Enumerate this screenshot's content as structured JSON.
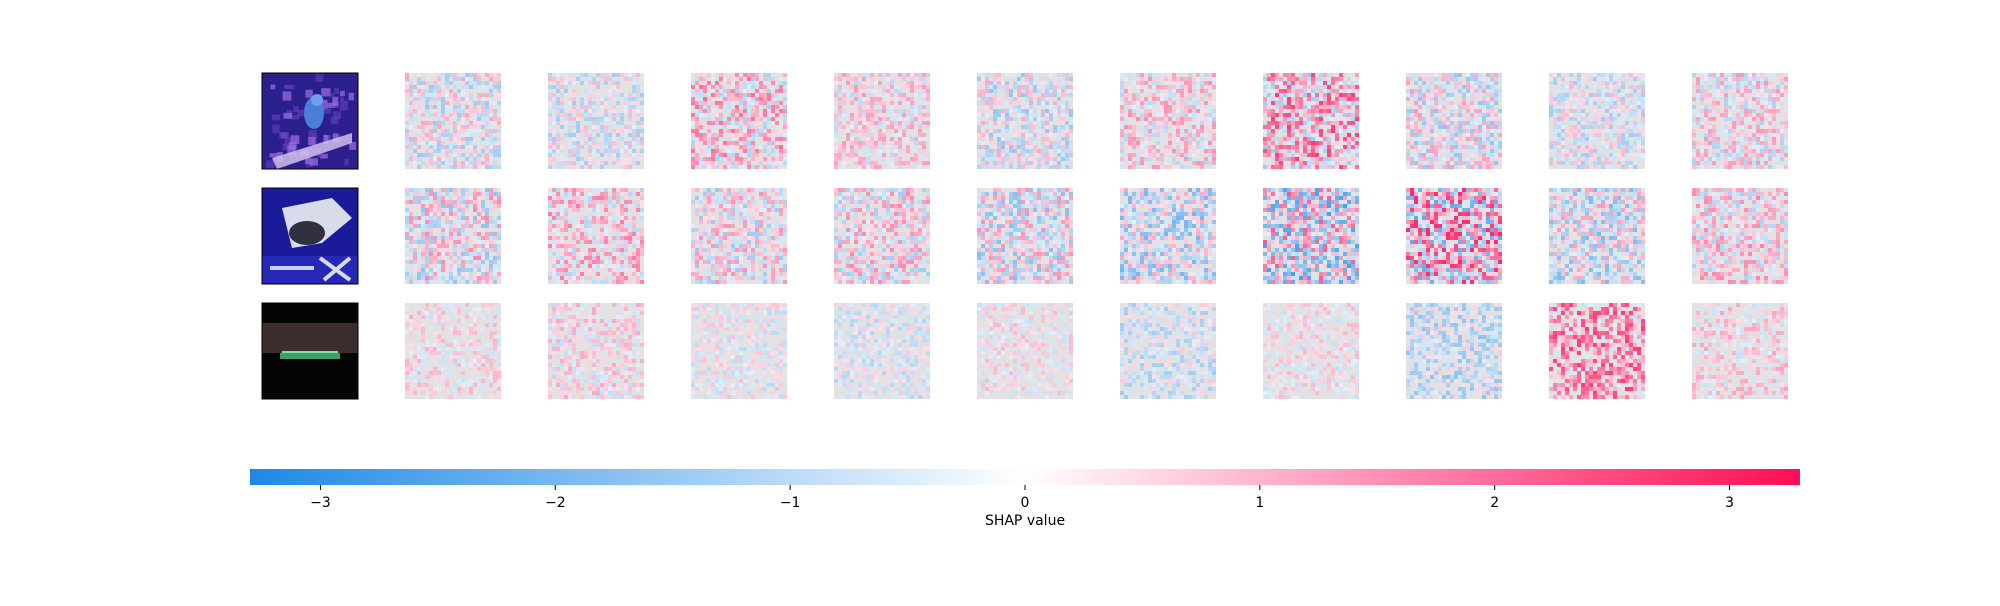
{
  "chart_data": {
    "type": "heatmap",
    "description_kind": "image-explanation-grid",
    "rows": 3,
    "columns_per_row": 11,
    "first_column": "original image",
    "input_images": [
      {
        "icon": "bird-image",
        "colors": {
          "background": "#2a1f8c",
          "subject": "#4a7fd8",
          "accent": "#a070e0"
        }
      },
      {
        "icon": "horse-image",
        "colors": {
          "background": "#1b1b9a",
          "subject": "#d8dce8",
          "accent": "#303040"
        }
      },
      {
        "icon": "ship-image",
        "colors": {
          "background": "#050505",
          "subject": "#3aa06a",
          "accent": "#3b2e2c"
        }
      }
    ],
    "explanation_intensity": [
      [
        0.45,
        0.4,
        0.55,
        0.4,
        0.45,
        0.45,
        0.7,
        0.5,
        0.4,
        0.45
      ],
      [
        0.55,
        0.5,
        0.5,
        0.5,
        0.55,
        0.55,
        0.85,
        0.95,
        0.55,
        0.5
      ],
      [
        0.3,
        0.35,
        0.3,
        0.3,
        0.3,
        0.35,
        0.3,
        0.4,
        0.6,
        0.35
      ]
    ],
    "explanation_bias": [
      [
        -0.1,
        -0.2,
        0.3,
        0.2,
        -0.2,
        0.2,
        0.4,
        -0.1,
        -0.2,
        0.1
      ],
      [
        0.0,
        0.3,
        0.0,
        0.1,
        -0.1,
        -0.3,
        -0.1,
        0.2,
        -0.2,
        0.2
      ],
      [
        0.2,
        0.2,
        -0.1,
        -0.3,
        0.1,
        -0.4,
        0.1,
        -0.5,
        0.7,
        0.3
      ]
    ],
    "colorbar": {
      "min": -3.3,
      "max": 3.3,
      "ticks": [
        -3,
        -2,
        -1,
        0,
        1,
        2,
        3
      ],
      "tick_labels": [
        "−3",
        "−2",
        "−1",
        "0",
        "1",
        "2",
        "3"
      ],
      "label": "SHAP value",
      "colors": {
        "negative": "#1e88e5",
        "zero": "#ffffff",
        "positive": "#ff0d57"
      }
    }
  }
}
